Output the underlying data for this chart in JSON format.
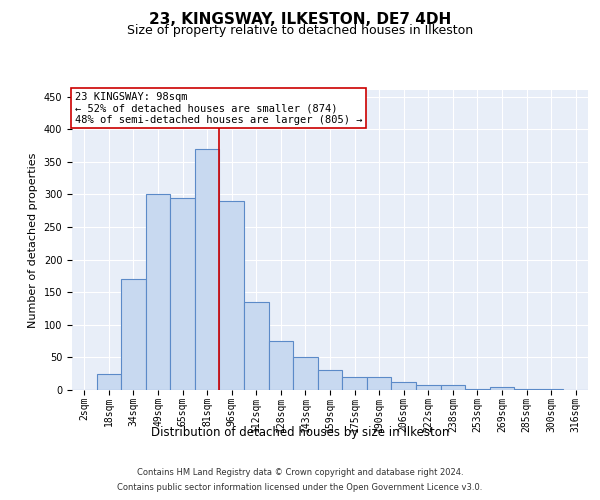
{
  "title1": "23, KINGSWAY, ILKESTON, DE7 4DH",
  "title2": "Size of property relative to detached houses in Ilkeston",
  "xlabel": "Distribution of detached houses by size in Ilkeston",
  "ylabel": "Number of detached properties",
  "categories": [
    "2sqm",
    "18sqm",
    "34sqm",
    "49sqm",
    "65sqm",
    "81sqm",
    "96sqm",
    "112sqm",
    "128sqm",
    "143sqm",
    "159sqm",
    "175sqm",
    "190sqm",
    "206sqm",
    "222sqm",
    "238sqm",
    "253sqm",
    "269sqm",
    "285sqm",
    "300sqm",
    "316sqm"
  ],
  "bar_heights": [
    0,
    25,
    170,
    300,
    295,
    370,
    290,
    135,
    75,
    50,
    30,
    20,
    20,
    12,
    8,
    8,
    2,
    5,
    2,
    2,
    0
  ],
  "bar_color": "#c8d9f0",
  "bar_edge_color": "#5b8ac8",
  "bar_edge_width": 0.8,
  "vline_x": 5.5,
  "vline_color": "#cc0000",
  "annotation_title": "23 KINGSWAY: 98sqm",
  "annotation_line1": "← 52% of detached houses are smaller (874)",
  "annotation_line2": "48% of semi-detached houses are larger (805) →",
  "annotation_box_color": "#ffffff",
  "annotation_box_edge": "#cc0000",
  "ylim": [
    0,
    460
  ],
  "yticks": [
    0,
    50,
    100,
    150,
    200,
    250,
    300,
    350,
    400,
    450
  ],
  "plot_background": "#e8eef8",
  "footer1": "Contains HM Land Registry data © Crown copyright and database right 2024.",
  "footer2": "Contains public sector information licensed under the Open Government Licence v3.0.",
  "title1_fontsize": 11,
  "title2_fontsize": 9,
  "tick_fontsize": 7,
  "ylabel_fontsize": 8,
  "xlabel_fontsize": 8.5,
  "annotation_fontsize": 7.5,
  "footer_fontsize": 6
}
